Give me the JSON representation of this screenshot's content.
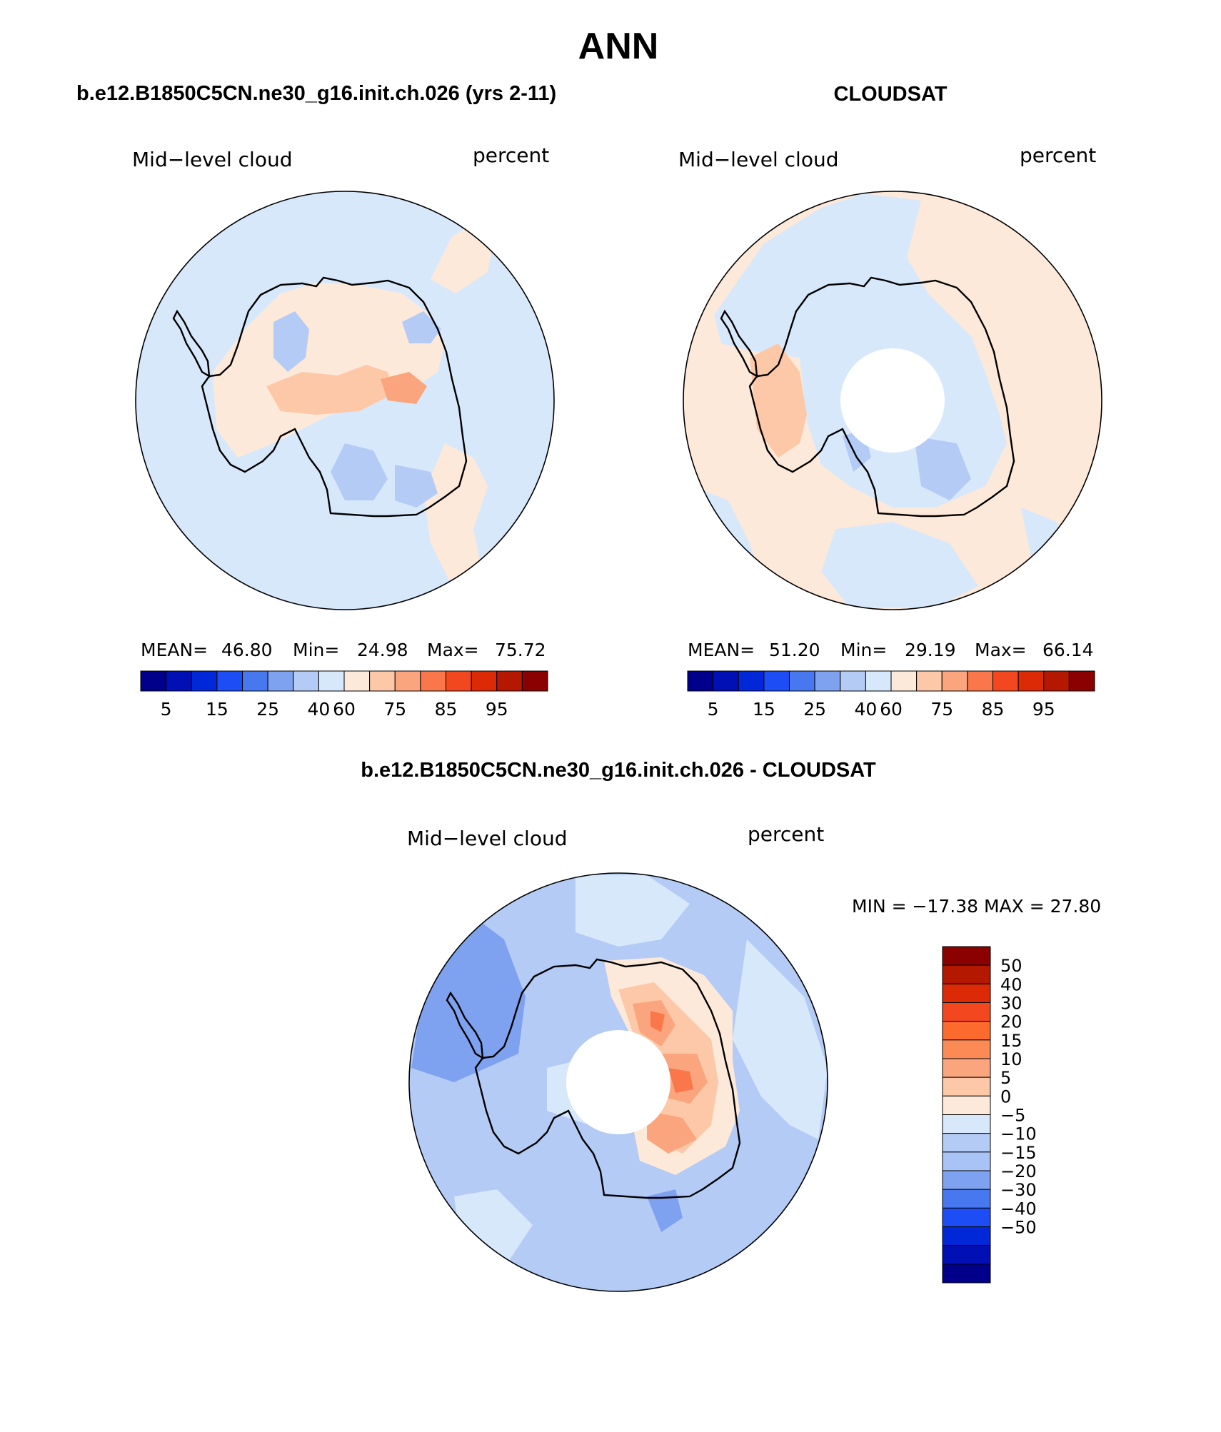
{
  "title": "ANN",
  "panels": [
    {
      "heading": "b.e12.B1850C5CN.ne30_g16.init.ch.026 (yrs 2-11)",
      "variable": "Mid−level cloud",
      "units": "percent",
      "stats": {
        "mean_label": "MEAN=",
        "mean": "46.80",
        "min_label": "Min=",
        "min": "24.98",
        "max_label": "Max=",
        "max": "75.72"
      }
    },
    {
      "heading": "CLOUDSAT",
      "variable": "Mid−level cloud",
      "units": "percent",
      "stats": {
        "mean_label": "MEAN=",
        "mean": "51.20",
        "min_label": "Min=",
        "min": "29.19",
        "max_label": "Max=",
        "max": "66.14"
      }
    },
    {
      "heading": "b.e12.B1850C5CN.ne30_g16.init.ch.026 - CLOUDSAT",
      "variable": "Mid−level cloud",
      "units": "percent",
      "minmax": "MIN = −17.38 MAX =   27.80"
    }
  ],
  "colorbar_levels": {
    "abs_colors": [
      "#00008b",
      "#0010b5",
      "#0028d8",
      "#1c4df5",
      "#4878f0",
      "#7ea2f0",
      "#b4cbf5",
      "#d8e8fb",
      "#fde9d9",
      "#fcc8a8",
      "#fba57e",
      "#f9774b",
      "#f3481f",
      "#dc2a07",
      "#b41800",
      "#8b0000"
    ],
    "abs_ticks": [
      "5",
      "15",
      "25",
      "40",
      "60",
      "75",
      "85",
      "95"
    ],
    "diff_colors": [
      "#8b0000",
      "#b41800",
      "#dc2a07",
      "#f3481f",
      "#fc6a2e",
      "#fb8a55",
      "#fba57e",
      "#fcc8a8",
      "#fde9d9",
      "#d8e8fb",
      "#b4cbf5",
      "#a8c4f6",
      "#7ea2f0",
      "#4878f0",
      "#1c4df5",
      "#0028d8",
      "#0010b5",
      "#00008b"
    ],
    "diff_ticks": [
      "50",
      "40",
      "30",
      "20",
      "15",
      "10",
      "5",
      "0",
      "−5",
      "−10",
      "−15",
      "−20",
      "−30",
      "−40",
      "−50"
    ]
  },
  "map_colors": {
    "light_blue": "#d8e8fb",
    "pale_blue": "#b4cbf5",
    "mid_blue": "#7ea2f0",
    "peach": "#fde9d9",
    "salmon": "#fcc8a8",
    "orange": "#fba57e",
    "red_orange": "#f9774b",
    "deep_red": "#f3481f"
  }
}
